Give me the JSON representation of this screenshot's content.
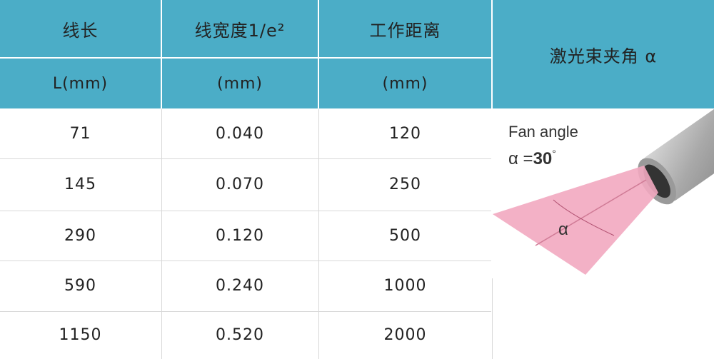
{
  "table": {
    "header": [
      [
        "线长",
        "线宽度1/e²",
        "工作距离",
        "激光束夹角 α"
      ],
      [
        "L(mm)",
        "(mm)",
        "(mm)"
      ]
    ],
    "rows": [
      [
        "71",
        "0.040",
        "120"
      ],
      [
        "145",
        "0.070",
        "250"
      ],
      [
        "290",
        "0.120",
        "500"
      ],
      [
        "590",
        "0.240",
        "1000"
      ],
      [
        "1150",
        "0.520",
        "2000"
      ]
    ]
  },
  "figure": {
    "caption": "Fan angle",
    "angle_prefix": "α =",
    "angle_value": "30",
    "angle_unit": "°",
    "alpha": "α"
  }
}
